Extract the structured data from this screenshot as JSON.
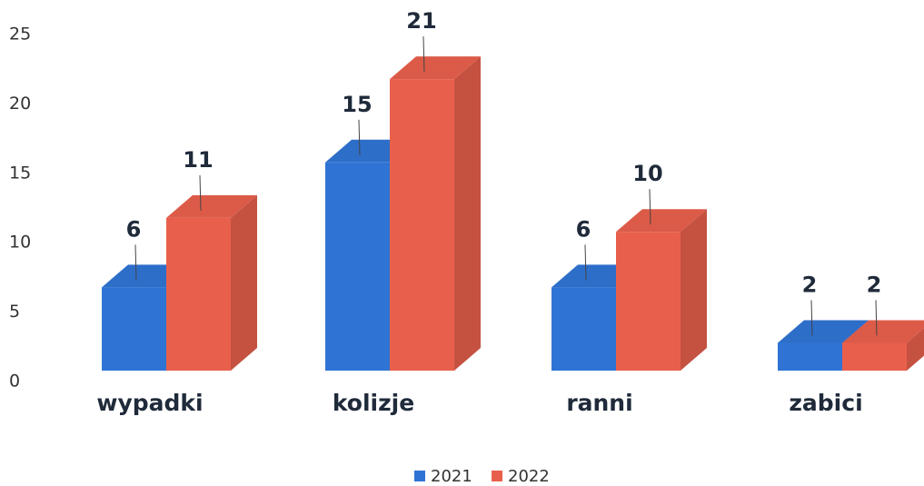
{
  "chart_data": {
    "type": "bar3d",
    "categories": [
      "wypadki",
      "kolizje",
      "ranni",
      "zabici"
    ],
    "series": [
      {
        "name": "2021",
        "color": "#2f74d4",
        "values": [
          6,
          15,
          6,
          2
        ]
      },
      {
        "name": "2022",
        "color": "#e8604c",
        "values": [
          11,
          21,
          10,
          2
        ]
      }
    ],
    "ylim": [
      0,
      25
    ],
    "yticks": [
      0,
      5,
      10,
      15,
      20,
      25
    ],
    "grid": false,
    "legend": "bottom"
  }
}
